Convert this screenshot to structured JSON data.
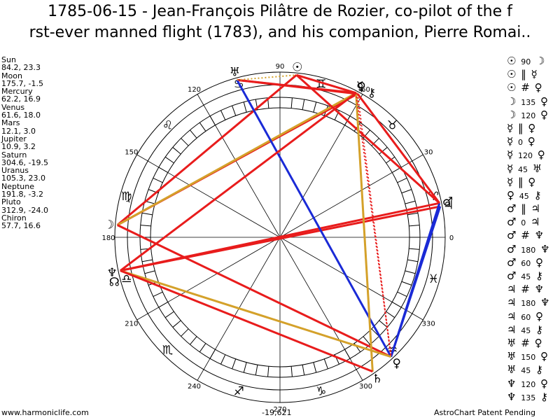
{
  "title": {
    "line1": "1785-06-15 - Jean-François Pilâtre de Rozier, co-pilot of the f",
    "line2": "rst-ever manned flight (1783), and his companion, Pierre Romai.."
  },
  "planets": [
    {
      "name": "Sun",
      "coords": "84.2, 23.3",
      "lon": 84.2,
      "glyph": "☉",
      "color": "#000000"
    },
    {
      "name": "Moon",
      "coords": "175.7, -1.5",
      "lon": 175.7,
      "glyph": "☽",
      "color": "#000000"
    },
    {
      "name": "Mercury",
      "coords": "62.2, 16.9",
      "lon": 62.2,
      "glyph": "☿",
      "color": "#000000"
    },
    {
      "name": "Venus",
      "coords": "61.6, 18.0",
      "lon": 61.6,
      "glyph": "♀",
      "color": "#000000"
    },
    {
      "name": "Mars",
      "coords": "12.1, 3.0",
      "lon": 12.1,
      "glyph": "♂",
      "color": "#000000"
    },
    {
      "name": "Jupiter",
      "coords": "10.9, 3.2",
      "lon": 10.9,
      "glyph": "♃",
      "color": "#000000"
    },
    {
      "name": "Saturn",
      "coords": "304.6, -19.5",
      "lon": 304.6,
      "glyph": "♄",
      "color": "#000000"
    },
    {
      "name": "Uranus",
      "coords": "105.3, 23.0",
      "lon": 105.3,
      "glyph": "♅",
      "color": "#000000"
    },
    {
      "name": "Neptune",
      "coords": "191.8, -3.2",
      "lon": 191.8,
      "glyph": "♆",
      "color": "#000000"
    },
    {
      "name": "Pluto",
      "coords": "312.9, -24.0",
      "lon": 312.9,
      "glyph": "♀",
      "color": "#000000"
    },
    {
      "name": "Chiron",
      "coords": "57.7, 16.6",
      "lon": 57.7,
      "glyph": "⚷",
      "color": "#000000"
    }
  ],
  "node": {
    "glyph": "☊",
    "lon": 195
  },
  "degree_labels": [
    "0",
    "30",
    "60",
    "90",
    "120",
    "150",
    "180",
    "210",
    "240",
    "270",
    "300",
    "330"
  ],
  "signs": [
    {
      "glyph": "♈",
      "lon": 15
    },
    {
      "glyph": "♉",
      "lon": 45
    },
    {
      "glyph": "♊",
      "lon": 75
    },
    {
      "glyph": "♋",
      "lon": 105
    },
    {
      "glyph": "♌",
      "lon": 135
    },
    {
      "glyph": "♍",
      "lon": 165
    },
    {
      "glyph": "♎",
      "lon": 195
    },
    {
      "glyph": "♏",
      "lon": 225
    },
    {
      "glyph": "♐",
      "lon": 255
    },
    {
      "glyph": "♑",
      "lon": 285
    },
    {
      "glyph": "♒",
      "lon": 315
    },
    {
      "glyph": "♓",
      "lon": 345
    }
  ],
  "aspects": [
    {
      "p1": "☉",
      "symbol": "",
      "value": "90",
      "p2": "☽"
    },
    {
      "p1": "☉",
      "symbol": "‖",
      "value": "",
      "p2": "☿"
    },
    {
      "p1": "☉",
      "symbol": "#",
      "value": "",
      "p2": "♀"
    },
    {
      "p1": "☽",
      "symbol": "",
      "value": "135",
      "p2": "♀"
    },
    {
      "p1": "☽",
      "symbol": "",
      "value": "120",
      "p2": "♀"
    },
    {
      "p1": "☿",
      "symbol": "‖",
      "value": "",
      "p2": "♀"
    },
    {
      "p1": "☿",
      "symbol": "",
      "value": "0",
      "p2": "♀"
    },
    {
      "p1": "☿",
      "symbol": "",
      "value": "120",
      "p2": "♀"
    },
    {
      "p1": "☿",
      "symbol": "",
      "value": "45",
      "p2": "♅"
    },
    {
      "p1": "☿",
      "symbol": "‖",
      "value": "",
      "p2": "♀"
    },
    {
      "p1": "♀",
      "symbol": "",
      "value": "45",
      "p2": "⚷"
    },
    {
      "p1": "♂",
      "symbol": "‖",
      "value": "",
      "p2": "♃"
    },
    {
      "p1": "♂",
      "symbol": "",
      "value": "0",
      "p2": "♃"
    },
    {
      "p1": "♂",
      "symbol": "#",
      "value": "",
      "p2": "♆"
    },
    {
      "p1": "♂",
      "symbol": "",
      "value": "180",
      "p2": "♆"
    },
    {
      "p1": "♂",
      "symbol": "",
      "value": "60",
      "p2": "♀"
    },
    {
      "p1": "♂",
      "symbol": "",
      "value": "45",
      "p2": "⚷"
    },
    {
      "p1": "♃",
      "symbol": "#",
      "value": "",
      "p2": "♆"
    },
    {
      "p1": "♃",
      "symbol": "",
      "value": "180",
      "p2": "♆"
    },
    {
      "p1": "♃",
      "symbol": "",
      "value": "60",
      "p2": "♀"
    },
    {
      "p1": "♃",
      "symbol": "",
      "value": "45",
      "p2": "⚷"
    },
    {
      "p1": "♅",
      "symbol": "#",
      "value": "",
      "p2": "♀"
    },
    {
      "p1": "♅",
      "symbol": "",
      "value": "150",
      "p2": "♀"
    },
    {
      "p1": "♅",
      "symbol": "",
      "value": "45",
      "p2": "⚷"
    },
    {
      "p1": "♆",
      "symbol": "",
      "value": "120",
      "p2": "♀"
    },
    {
      "p1": "♆",
      "symbol": "",
      "value": "135",
      "p2": "⚷"
    }
  ],
  "aspect_lines": [
    {
      "from": "Sun",
      "to": "Moon",
      "color": "#e81c1c",
      "style": "solid"
    },
    {
      "from": "Moon",
      "to": "Venus",
      "color": "#e81c1c",
      "style": "solid"
    },
    {
      "from": "Moon",
      "to": "Mercury",
      "color": "#d4a12a",
      "style": "solid"
    },
    {
      "from": "Moon",
      "to": "Pluto",
      "color": "#e81c1c",
      "style": "solid"
    },
    {
      "from": "Mars",
      "to": "Neptune",
      "color": "#e81c1c",
      "style": "solid"
    },
    {
      "from": "Jupiter",
      "to": "Neptune",
      "color": "#e81c1c",
      "style": "solid"
    },
    {
      "from": "Mars",
      "to": "Neptune",
      "color": "#e81c1c",
      "style": "dotted"
    },
    {
      "from": "Mars",
      "to": "Pluto",
      "color": "#1a2ad6",
      "style": "solid"
    },
    {
      "from": "Jupiter",
      "to": "Pluto",
      "color": "#1a2ad6",
      "style": "solid"
    },
    {
      "from": "Mars",
      "to": "Venus",
      "color": "#e81c1c",
      "style": "solid"
    },
    {
      "from": "Mars",
      "to": "Sun",
      "color": "#e81c1c",
      "style": "solid"
    },
    {
      "from": "Sun",
      "to": "Mercury",
      "color": "#e81c1c",
      "style": "solid"
    },
    {
      "from": "Uranus",
      "to": "Mercury",
      "color": "#e81c1c",
      "style": "solid"
    },
    {
      "from": "Uranus",
      "to": "Venus",
      "color": "#e81c1c",
      "style": "solid"
    },
    {
      "from": "Uranus",
      "to": "Pluto",
      "color": "#1a2ad6",
      "style": "solid"
    },
    {
      "from": "Uranus",
      "to": "Sun",
      "color": "#d4a12a",
      "style": "dotted"
    },
    {
      "from": "Mercury",
      "to": "Saturn",
      "color": "#d4a12a",
      "style": "solid"
    },
    {
      "from": "Mercury",
      "to": "Pluto",
      "color": "#e81c1c",
      "style": "dotted"
    },
    {
      "from": "Venus",
      "to": "Pluto",
      "color": "#e81c1c",
      "style": "dotted"
    },
    {
      "from": "Neptune",
      "to": "Pluto",
      "color": "#d4a12a",
      "style": "solid"
    },
    {
      "from": "Neptune",
      "to": "Saturn",
      "color": "#e81c1c",
      "style": "solid"
    },
    {
      "from": "Neptune",
      "to": "Mercury",
      "color": "#e81c1c",
      "style": "solid"
    }
  ],
  "footer": {
    "left": "www.harmoniclife.com",
    "center": "-19,621",
    "right": "AstroChart Patent Pending"
  }
}
